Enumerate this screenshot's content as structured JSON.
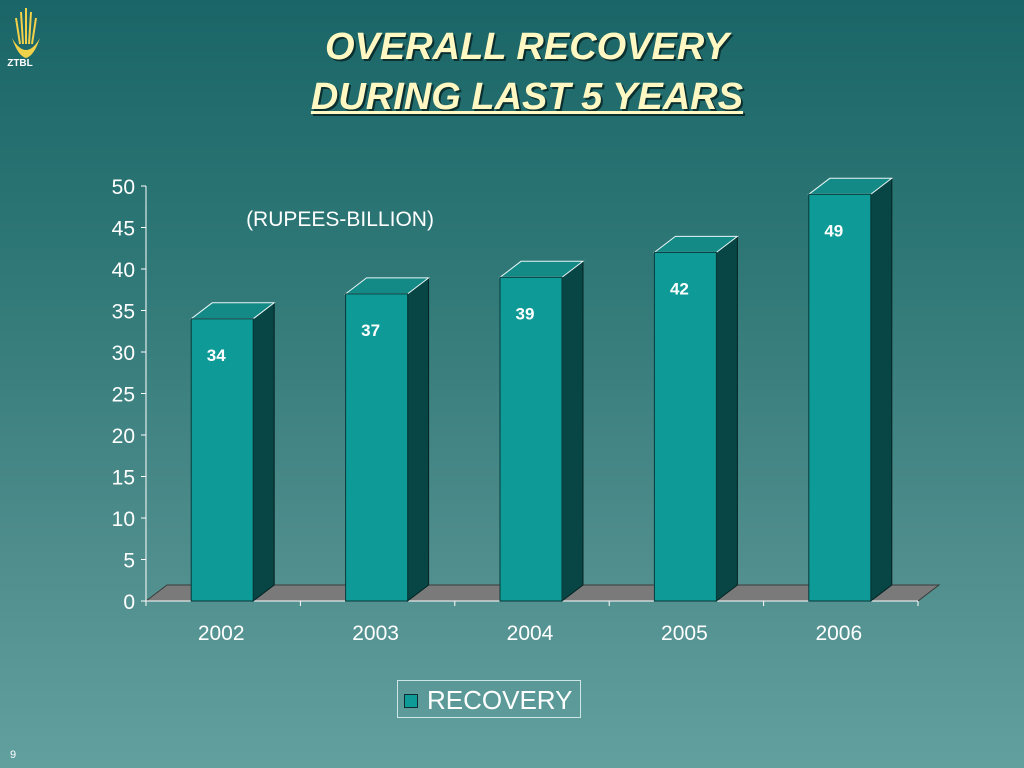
{
  "logo": {
    "text": "ZTBL"
  },
  "title": {
    "line1": "OVERALL RECOVERY",
    "line2": "DURING LAST 5 YEARS"
  },
  "chart_data": {
    "type": "bar",
    "categories": [
      "2002",
      "2003",
      "2004",
      "2005",
      "2006"
    ],
    "series": [
      {
        "name": "RECOVERY",
        "values": [
          34,
          37,
          39,
          42,
          49
        ]
      }
    ],
    "data_labels": [
      "34",
      "37",
      "39",
      "42",
      "49"
    ],
    "annotation": "(RUPEES-BILLION)",
    "ylim": [
      0,
      50
    ],
    "y_ticks": [
      0,
      5,
      10,
      15,
      20,
      25,
      30,
      35,
      40,
      45,
      50
    ],
    "grid": false,
    "three_d": true,
    "legend_position": "bottom"
  },
  "colors": {
    "bar_front": "#0e9a96",
    "bar_top": "#138a86",
    "bar_side": "#074645",
    "floor": "#7a7a7a"
  },
  "page_number": "9"
}
